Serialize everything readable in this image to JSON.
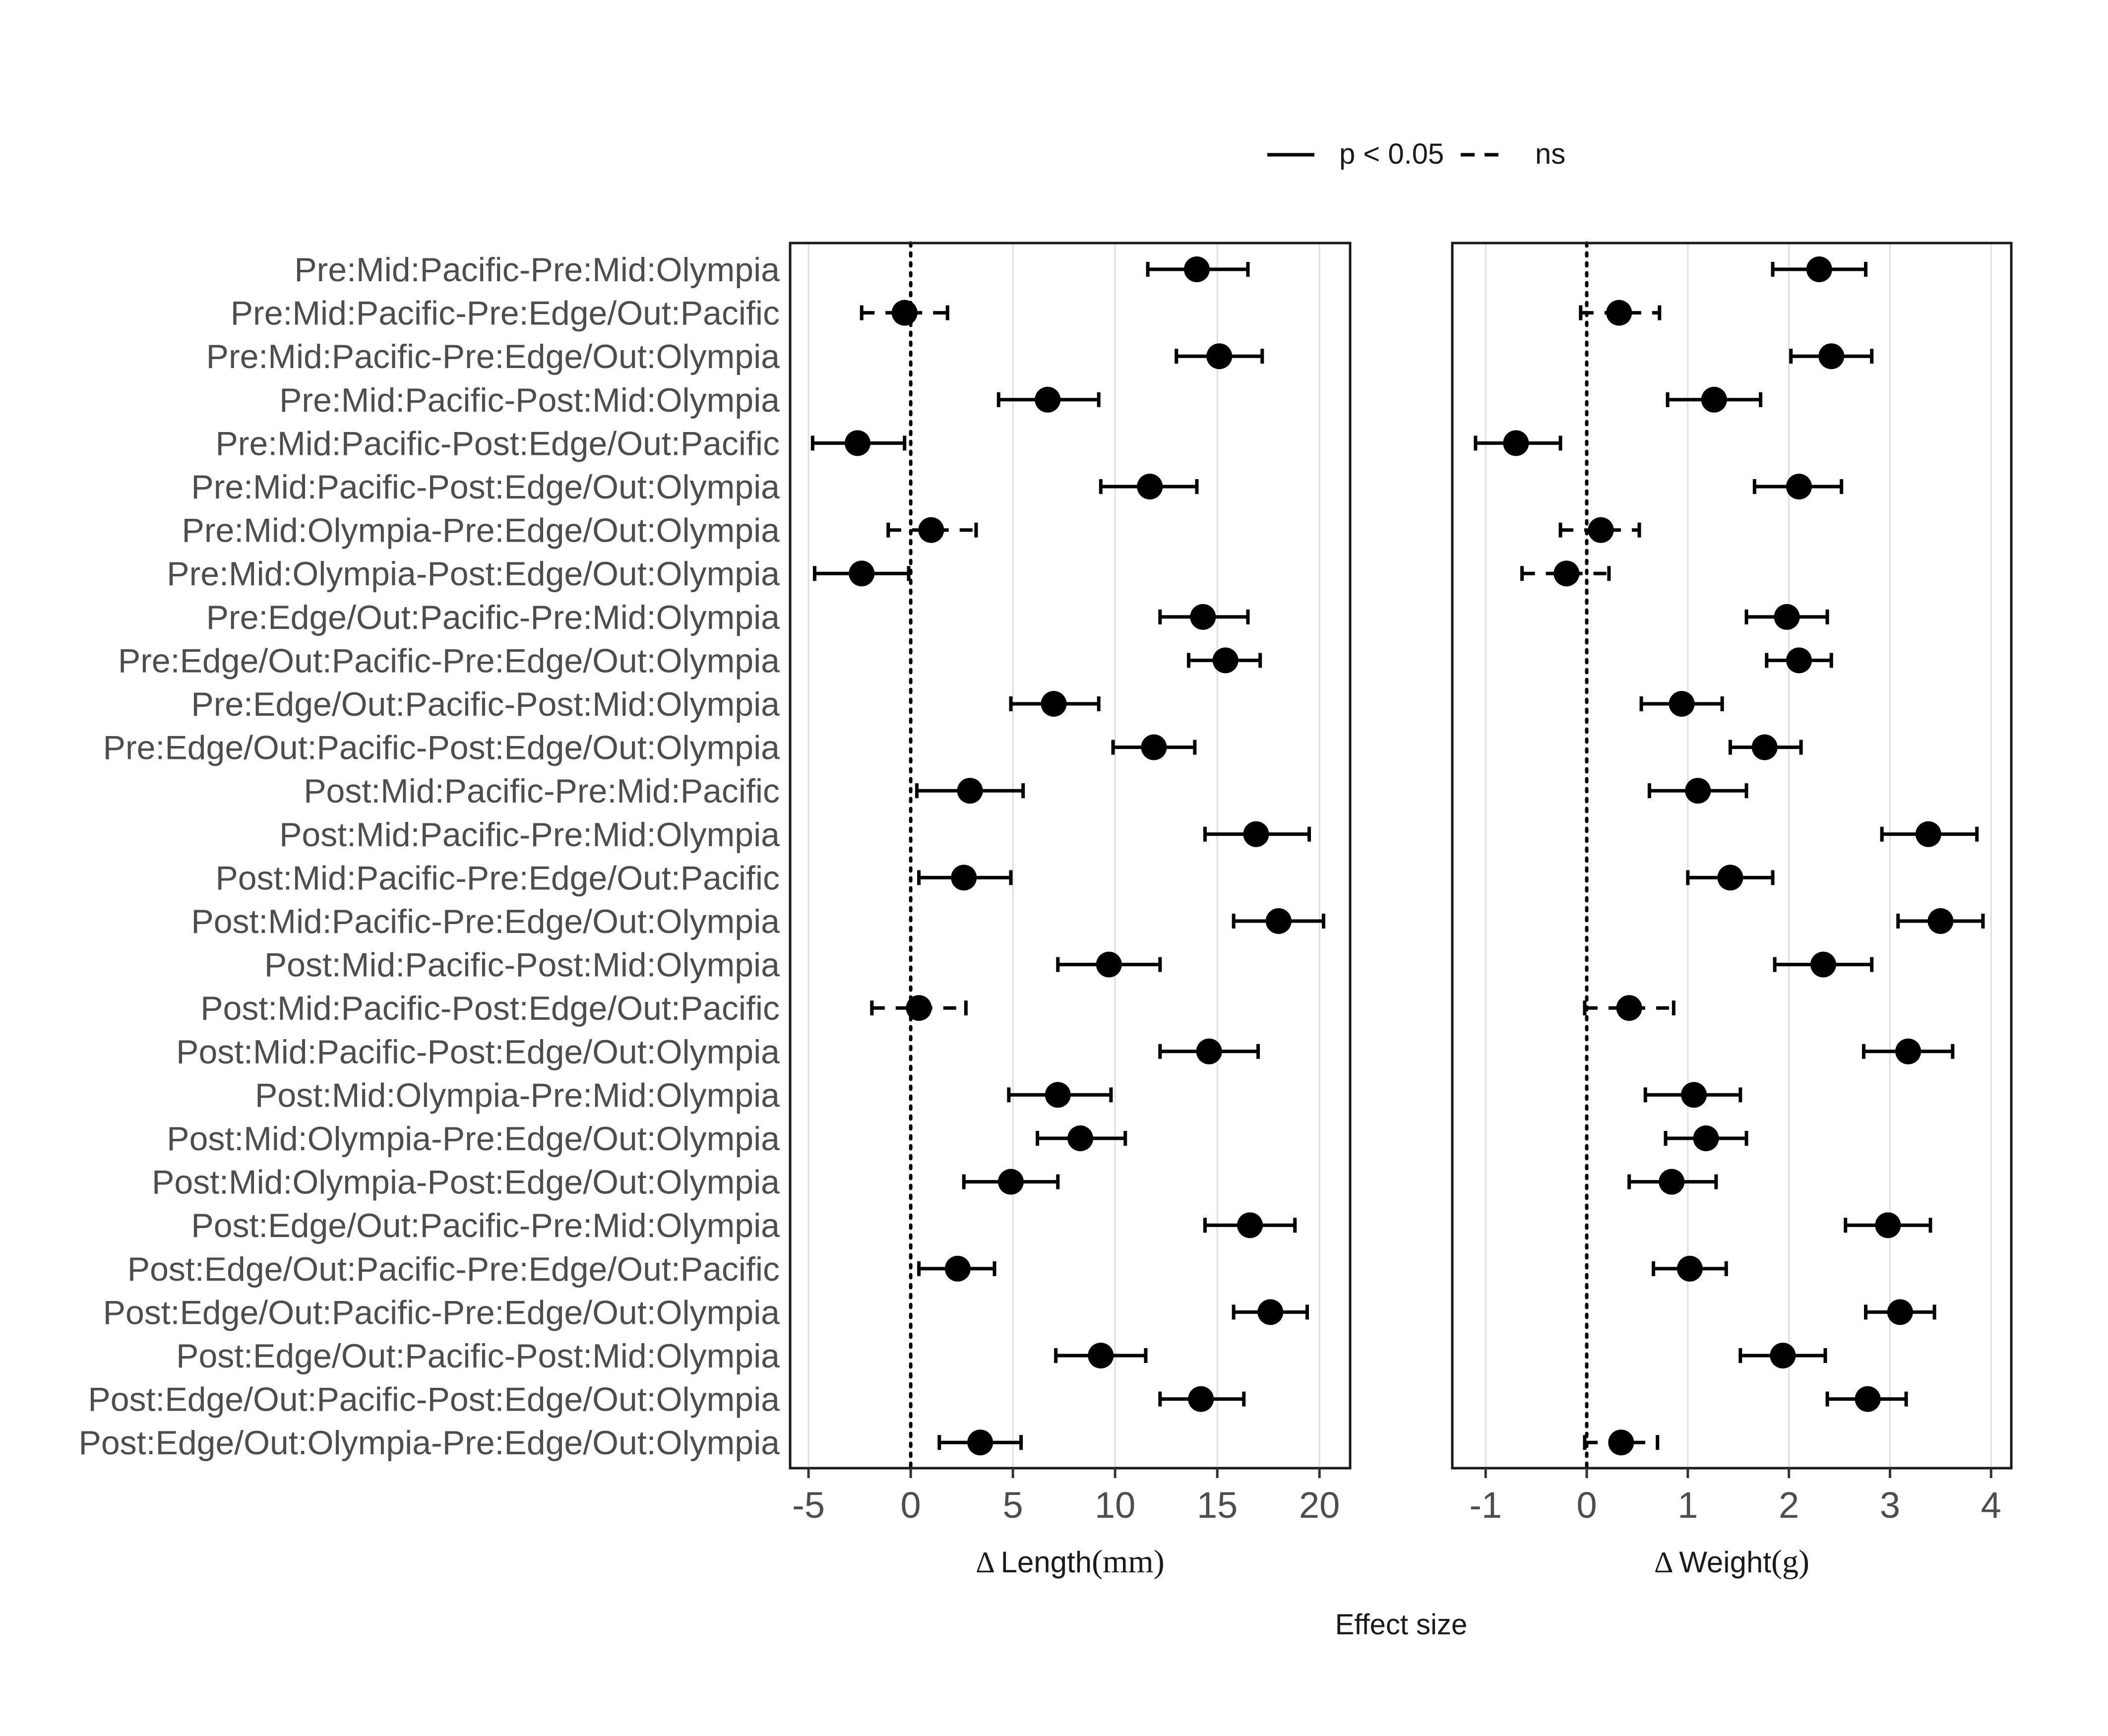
{
  "chart_data": [
    {
      "type": "scatter",
      "subtype": "forest-plot",
      "xlabel_prefix": "Δ",
      "xlabel_main": "Length",
      "xlabel_unit": "(mm)",
      "xlim": [
        -5.9,
        21.5
      ],
      "xticks": [
        -5,
        0,
        5,
        10,
        15,
        20
      ],
      "reference_line": 0,
      "points": [
        {
          "estimate": 14.0,
          "lower": 11.6,
          "upper": 16.5,
          "sig": true
        },
        {
          "estimate": -0.3,
          "lower": -2.4,
          "upper": 1.8,
          "sig": false
        },
        {
          "estimate": 15.1,
          "lower": 13.0,
          "upper": 17.2,
          "sig": true
        },
        {
          "estimate": 6.7,
          "lower": 4.3,
          "upper": 9.2,
          "sig": true
        },
        {
          "estimate": -2.6,
          "lower": -4.8,
          "upper": -0.3,
          "sig": true
        },
        {
          "estimate": 11.7,
          "lower": 9.3,
          "upper": 14.0,
          "sig": true
        },
        {
          "estimate": 1.0,
          "lower": -1.1,
          "upper": 3.2,
          "sig": false
        },
        {
          "estimate": -2.4,
          "lower": -4.7,
          "upper": -0.1,
          "sig": true
        },
        {
          "estimate": 14.3,
          "lower": 12.2,
          "upper": 16.5,
          "sig": true
        },
        {
          "estimate": 15.4,
          "lower": 13.6,
          "upper": 17.1,
          "sig": true
        },
        {
          "estimate": 7.0,
          "lower": 4.9,
          "upper": 9.2,
          "sig": true
        },
        {
          "estimate": 11.9,
          "lower": 9.9,
          "upper": 13.9,
          "sig": true
        },
        {
          "estimate": 2.9,
          "lower": 0.3,
          "upper": 5.5,
          "sig": true
        },
        {
          "estimate": 16.9,
          "lower": 14.4,
          "upper": 19.5,
          "sig": true
        },
        {
          "estimate": 2.6,
          "lower": 0.4,
          "upper": 4.9,
          "sig": true
        },
        {
          "estimate": 18.0,
          "lower": 15.8,
          "upper": 20.2,
          "sig": true
        },
        {
          "estimate": 9.7,
          "lower": 7.2,
          "upper": 12.2,
          "sig": true
        },
        {
          "estimate": 0.4,
          "lower": -1.9,
          "upper": 2.7,
          "sig": false
        },
        {
          "estimate": 14.6,
          "lower": 12.2,
          "upper": 17.0,
          "sig": true
        },
        {
          "estimate": 7.2,
          "lower": 4.8,
          "upper": 9.8,
          "sig": true
        },
        {
          "estimate": 8.3,
          "lower": 6.2,
          "upper": 10.5,
          "sig": true
        },
        {
          "estimate": 4.9,
          "lower": 2.6,
          "upper": 7.2,
          "sig": true
        },
        {
          "estimate": 16.6,
          "lower": 14.4,
          "upper": 18.8,
          "sig": true
        },
        {
          "estimate": 2.3,
          "lower": 0.4,
          "upper": 4.1,
          "sig": true
        },
        {
          "estimate": 17.6,
          "lower": 15.8,
          "upper": 19.4,
          "sig": true
        },
        {
          "estimate": 9.3,
          "lower": 7.1,
          "upper": 11.5,
          "sig": true
        },
        {
          "estimate": 14.2,
          "lower": 12.2,
          "upper": 16.3,
          "sig": true
        },
        {
          "estimate": 3.4,
          "lower": 1.4,
          "upper": 5.4,
          "sig": true
        }
      ]
    },
    {
      "type": "scatter",
      "subtype": "forest-plot",
      "xlabel_prefix": "Δ",
      "xlabel_main": "Weight",
      "xlabel_unit": "(g)",
      "xlim": [
        -1.33,
        4.2
      ],
      "xticks": [
        -1,
        0,
        1,
        2,
        3,
        4
      ],
      "reference_line": 0,
      "points": [
        {
          "estimate": 2.3,
          "lower": 1.84,
          "upper": 2.76,
          "sig": true
        },
        {
          "estimate": 0.32,
          "lower": -0.06,
          "upper": 0.72,
          "sig": false
        },
        {
          "estimate": 2.42,
          "lower": 2.02,
          "upper": 2.82,
          "sig": true
        },
        {
          "estimate": 1.26,
          "lower": 0.8,
          "upper": 1.72,
          "sig": true
        },
        {
          "estimate": -0.7,
          "lower": -1.1,
          "upper": -0.26,
          "sig": true
        },
        {
          "estimate": 2.1,
          "lower": 1.66,
          "upper": 2.52,
          "sig": true
        },
        {
          "estimate": 0.14,
          "lower": -0.26,
          "upper": 0.52,
          "sig": false
        },
        {
          "estimate": -0.2,
          "lower": -0.64,
          "upper": 0.22,
          "sig": false
        },
        {
          "estimate": 1.98,
          "lower": 1.58,
          "upper": 2.38,
          "sig": true
        },
        {
          "estimate": 2.1,
          "lower": 1.78,
          "upper": 2.42,
          "sig": true
        },
        {
          "estimate": 0.94,
          "lower": 0.54,
          "upper": 1.34,
          "sig": true
        },
        {
          "estimate": 1.76,
          "lower": 1.42,
          "upper": 2.12,
          "sig": true
        },
        {
          "estimate": 1.1,
          "lower": 0.62,
          "upper": 1.58,
          "sig": true
        },
        {
          "estimate": 3.38,
          "lower": 2.92,
          "upper": 3.86,
          "sig": true
        },
        {
          "estimate": 1.42,
          "lower": 1.0,
          "upper": 1.84,
          "sig": true
        },
        {
          "estimate": 3.5,
          "lower": 3.08,
          "upper": 3.92,
          "sig": true
        },
        {
          "estimate": 2.34,
          "lower": 1.86,
          "upper": 2.82,
          "sig": true
        },
        {
          "estimate": 0.42,
          "lower": -0.02,
          "upper": 0.86,
          "sig": false
        },
        {
          "estimate": 3.18,
          "lower": 2.74,
          "upper": 3.62,
          "sig": true
        },
        {
          "estimate": 1.06,
          "lower": 0.58,
          "upper": 1.52,
          "sig": true
        },
        {
          "estimate": 1.18,
          "lower": 0.78,
          "upper": 1.58,
          "sig": true
        },
        {
          "estimate": 0.84,
          "lower": 0.42,
          "upper": 1.28,
          "sig": true
        },
        {
          "estimate": 2.98,
          "lower": 2.56,
          "upper": 3.4,
          "sig": true
        },
        {
          "estimate": 1.02,
          "lower": 0.66,
          "upper": 1.38,
          "sig": true
        },
        {
          "estimate": 3.1,
          "lower": 2.76,
          "upper": 3.44,
          "sig": true
        },
        {
          "estimate": 1.94,
          "lower": 1.52,
          "upper": 2.36,
          "sig": true
        },
        {
          "estimate": 2.78,
          "lower": 2.38,
          "upper": 3.16,
          "sig": true
        },
        {
          "estimate": 0.34,
          "lower": -0.02,
          "upper": 0.7,
          "sig": false
        }
      ]
    }
  ],
  "comparisons": [
    "Pre:Mid:Pacific-Pre:Mid:Olympia",
    "Pre:Mid:Pacific-Pre:Edge/Out:Pacific",
    "Pre:Mid:Pacific-Pre:Edge/Out:Olympia",
    "Pre:Mid:Pacific-Post:Mid:Olympia",
    "Pre:Mid:Pacific-Post:Edge/Out:Pacific",
    "Pre:Mid:Pacific-Post:Edge/Out:Olympia",
    "Pre:Mid:Olympia-Pre:Edge/Out:Olympia",
    "Pre:Mid:Olympia-Post:Edge/Out:Olympia",
    "Pre:Edge/Out:Pacific-Pre:Mid:Olympia",
    "Pre:Edge/Out:Pacific-Pre:Edge/Out:Olympia",
    "Pre:Edge/Out:Pacific-Post:Mid:Olympia",
    "Pre:Edge/Out:Pacific-Post:Edge/Out:Olympia",
    "Post:Mid:Pacific-Pre:Mid:Pacific",
    "Post:Mid:Pacific-Pre:Mid:Olympia",
    "Post:Mid:Pacific-Pre:Edge/Out:Pacific",
    "Post:Mid:Pacific-Pre:Edge/Out:Olympia",
    "Post:Mid:Pacific-Post:Mid:Olympia",
    "Post:Mid:Pacific-Post:Edge/Out:Pacific",
    "Post:Mid:Pacific-Post:Edge/Out:Olympia",
    "Post:Mid:Olympia-Pre:Mid:Olympia",
    "Post:Mid:Olympia-Pre:Edge/Out:Olympia",
    "Post:Mid:Olympia-Post:Edge/Out:Olympia",
    "Post:Edge/Out:Pacific-Pre:Mid:Olympia",
    "Post:Edge/Out:Pacific-Pre:Edge/Out:Pacific",
    "Post:Edge/Out:Pacific-Pre:Edge/Out:Olympia",
    "Post:Edge/Out:Pacific-Post:Mid:Olympia",
    "Post:Edge/Out:Pacific-Post:Edge/Out:Olympia",
    "Post:Edge/Out:Olympia-Pre:Edge/Out:Olympia"
  ],
  "legend": {
    "placement": "top",
    "items": [
      {
        "label": "p < 0.05",
        "line": "solid"
      },
      {
        "label": "ns",
        "line": "dashed"
      }
    ]
  },
  "common_xlabel": "Effect size",
  "colors": {
    "ink": "#000000",
    "label": "#4d4d4d",
    "grid": "#dedede",
    "panel_border": "#1a1a1a"
  }
}
